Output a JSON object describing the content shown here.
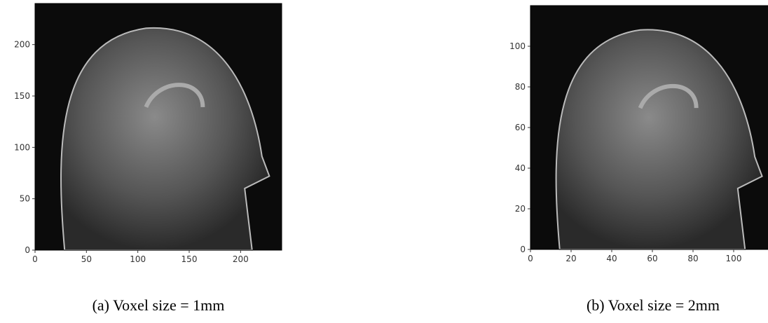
{
  "chart_data": [
    {
      "type": "image",
      "caption": "(a) Voxel size = 1mm",
      "xlim": [
        0,
        240
      ],
      "ylim": [
        0,
        240
      ],
      "xticks": [
        0,
        50,
        100,
        150,
        200
      ],
      "yticks": [
        0,
        50,
        100,
        150,
        200
      ]
    },
    {
      "type": "image",
      "caption": "(b) Voxel size = 2mm",
      "xlim": [
        0,
        120
      ],
      "ylim": [
        0,
        120
      ],
      "xticks": [
        0,
        20,
        40,
        60,
        80,
        100
      ],
      "yticks": [
        0,
        20,
        40,
        60,
        80,
        100
      ]
    }
  ]
}
